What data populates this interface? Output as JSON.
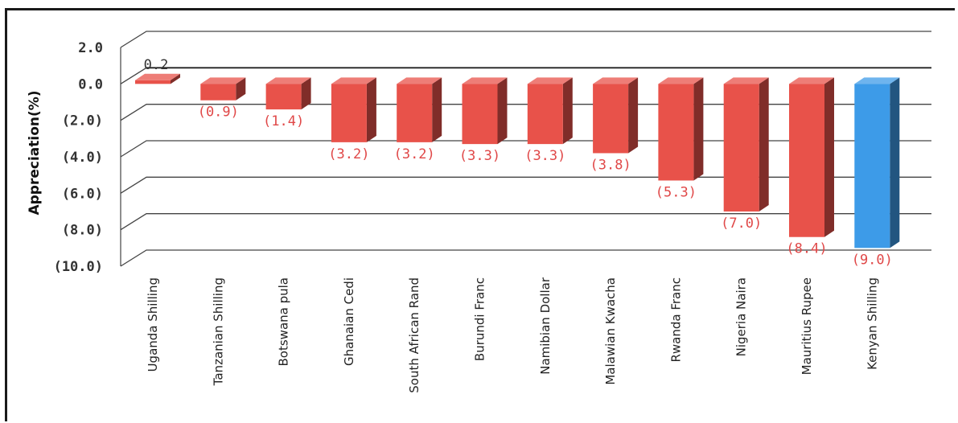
{
  "chart_data": {
    "type": "bar",
    "ylabel": "Appreciation(%)",
    "xlabel": "",
    "ylim": [
      -10,
      2
    ],
    "yticks": [
      2,
      0,
      -2,
      -4,
      -6,
      -8,
      -10
    ],
    "ytick_labels": [
      "2.0",
      "0.0",
      "(2.0)",
      "(4.0)",
      "(6.0)",
      "(8.0)",
      "(10.0)"
    ],
    "grid": true,
    "categories": [
      "Uganda Shilling",
      "Tanzanian Shilling",
      "Botswana pula",
      "Ghanaian Cedi",
      "South African Rand",
      "Burundi Franc",
      "Namibian Dollar",
      "Malawian Kwacha",
      "Rwanda Franc",
      "Nigeria Naira",
      "Mauritius Rupee",
      "Kenyan Shilling"
    ],
    "values": [
      0.2,
      -0.9,
      -1.4,
      -3.2,
      -3.2,
      -3.3,
      -3.3,
      -3.8,
      -5.3,
      -7.0,
      -8.4,
      -9.0
    ],
    "value_labels": [
      "0.2",
      "(0.9)",
      "(1.4)",
      "(3.2)",
      "(3.2)",
      "(3.3)",
      "(3.3)",
      "(3.8)",
      "(5.3)",
      "(7.0)",
      "(8.4)",
      "(9.0)"
    ],
    "colors": [
      "#e8524a",
      "#e8524a",
      "#e8524a",
      "#e8524a",
      "#e8524a",
      "#e8524a",
      "#e8524a",
      "#e8524a",
      "#e8524a",
      "#e8524a",
      "#e8524a",
      "#3d9be8"
    ],
    "label_colors": {
      "positive": "#333333",
      "negative": "#e04848"
    }
  }
}
